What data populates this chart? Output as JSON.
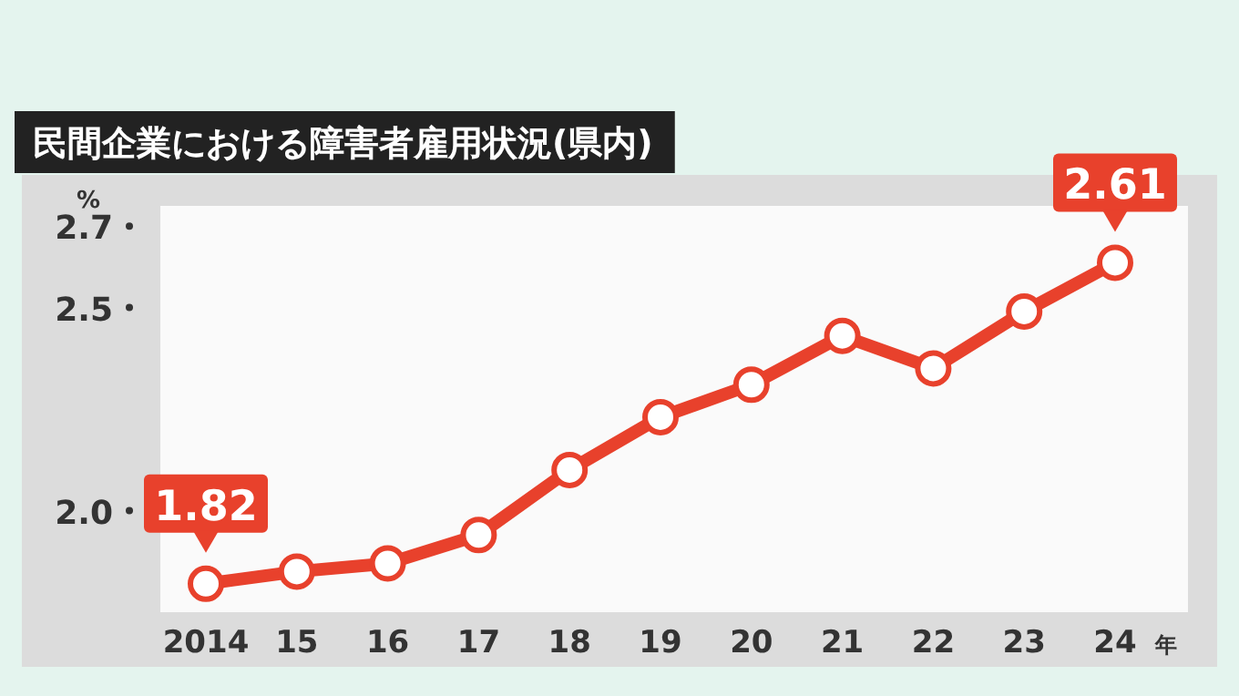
{
  "chart_data": {
    "type": "line",
    "title": "民間企業における障害者雇用状況(県内)",
    "ylabel": "%",
    "xlabel": "年",
    "categories": [
      "2014",
      "15",
      "16",
      "17",
      "18",
      "19",
      "20",
      "21",
      "22",
      "23",
      "24"
    ],
    "series": [
      {
        "color": "#e8412c",
        "values": [
          1.82,
          1.85,
          1.87,
          1.94,
          2.1,
          2.23,
          2.31,
          2.43,
          2.35,
          2.49,
          2.61
        ],
        "value_labels": [
          "1.82",
          null,
          null,
          null,
          null,
          null,
          null,
          null,
          null,
          null,
          "2.61"
        ]
      }
    ],
    "ylim": [
      1.75,
      2.75
    ],
    "yticks": [
      {
        "value": 2.0,
        "label": "2.0"
      },
      2.5,
      2.7
    ],
    "marker": "circle",
    "line_style": "solid"
  }
}
